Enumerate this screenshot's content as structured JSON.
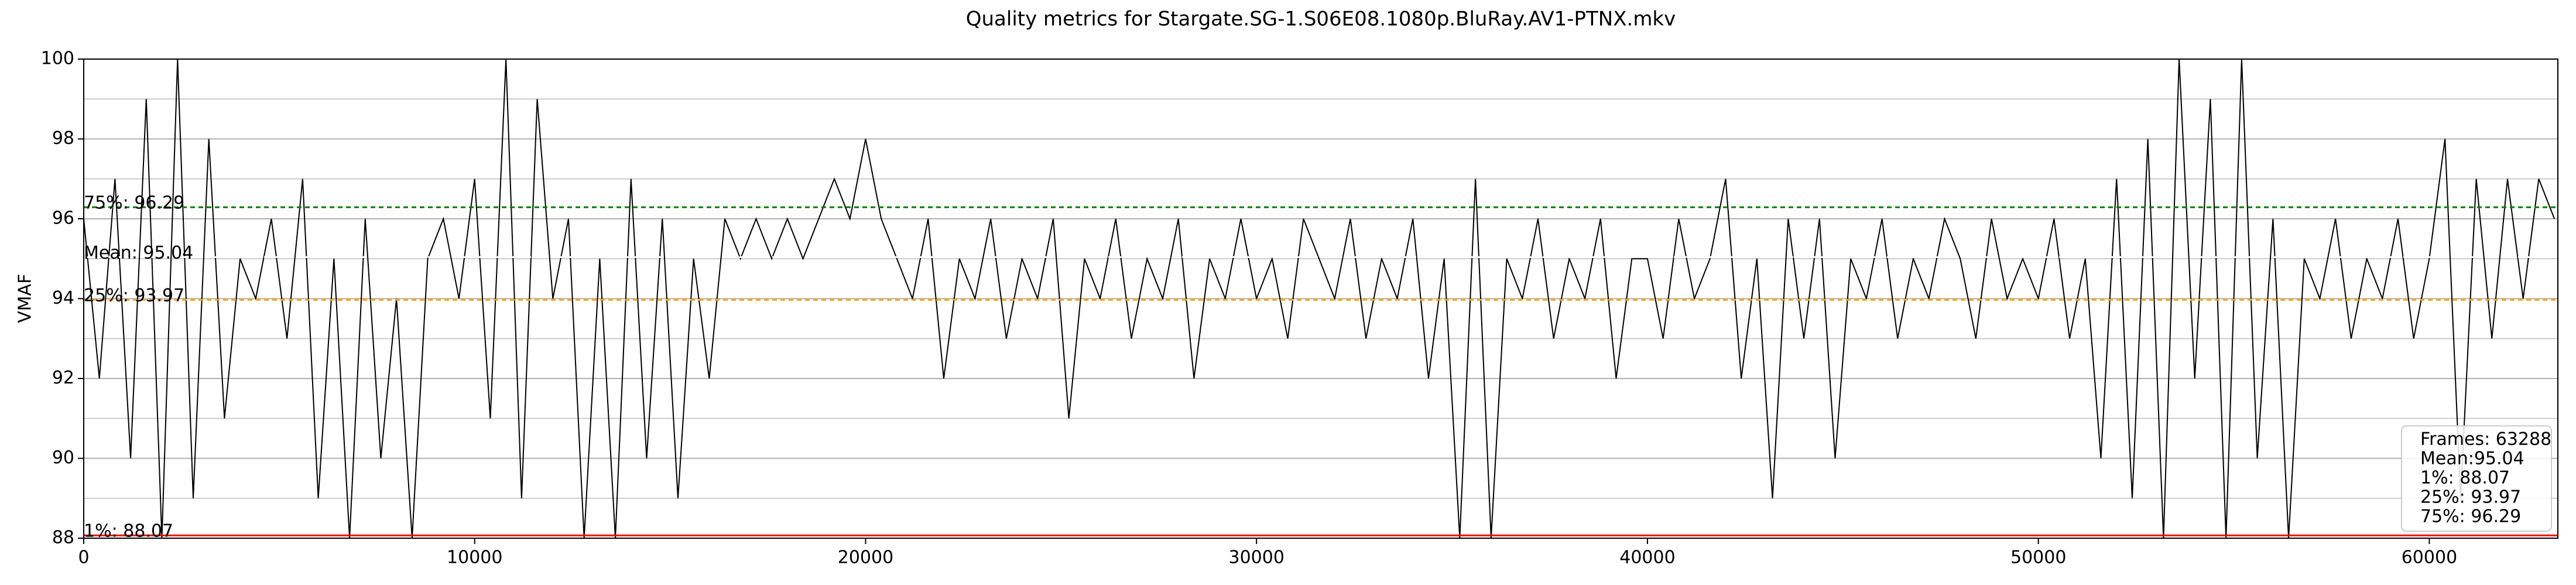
{
  "chart_data": {
    "type": "line",
    "title": "Quality metrics for Stargate.SG-1.S06E08.1080p.BluRay.AV1-PTNX.mkv",
    "y_label": "VMAF",
    "xlim": [
      0,
      63288
    ],
    "ylim": [
      88,
      100
    ],
    "xticks": [
      0,
      10000,
      20000,
      30000,
      40000,
      50000,
      60000
    ],
    "yticks": [
      88,
      90,
      92,
      94,
      96,
      98,
      100
    ],
    "yminor_ticks": [
      89,
      91,
      93,
      95,
      97,
      99
    ],
    "grid": true,
    "series": [
      {
        "color": "#000000",
        "x": [
          0,
          400,
          800,
          1200,
          1600,
          2000,
          2400,
          2800,
          3200,
          3600,
          4000,
          4400,
          4800,
          5200,
          5600,
          6000,
          6400,
          6800,
          7200,
          7600,
          8000,
          8400,
          8800,
          9200,
          9600,
          10000,
          10400,
          10800,
          11200,
          11600,
          12000,
          12400,
          12800,
          13200,
          13600,
          14000,
          14400,
          14800,
          15200,
          15600,
          16000,
          16400,
          16800,
          17200,
          17600,
          18000,
          18400,
          18800,
          19200,
          19600,
          20000,
          20400,
          20800,
          21200,
          21600,
          22000,
          22400,
          22800,
          23200,
          23600,
          24000,
          24400,
          24800,
          25200,
          25600,
          26000,
          26400,
          26800,
          27200,
          27600,
          28000,
          28400,
          28800,
          29200,
          29600,
          30000,
          30400,
          30800,
          31200,
          31600,
          32000,
          32400,
          32800,
          33200,
          33600,
          34000,
          34400,
          34800,
          35200,
          35600,
          36000,
          36400,
          36800,
          37200,
          37600,
          38000,
          38400,
          38800,
          39200,
          39600,
          40000,
          40400,
          40800,
          41200,
          41600,
          42000,
          42400,
          42800,
          43200,
          43600,
          44000,
          44400,
          44800,
          45200,
          45600,
          46000,
          46400,
          46800,
          47200,
          47600,
          48000,
          48400,
          48800,
          49200,
          49600,
          50000,
          50400,
          50800,
          51200,
          51600,
          52000,
          52400,
          52800,
          53200,
          53600,
          54000,
          54400,
          54800,
          55200,
          55600,
          56000,
          56400,
          56800,
          57200,
          57600,
          58000,
          58400,
          58800,
          59200,
          59600,
          60000,
          60400,
          60800,
          61200,
          61600,
          62000,
          62400,
          62800,
          63200
        ],
        "values": [
          96,
          92,
          97,
          90,
          99,
          88,
          100,
          89,
          98,
          91,
          95,
          94,
          96,
          93,
          97,
          89,
          95,
          88,
          96,
          90,
          94,
          88,
          95,
          96,
          94,
          97,
          91,
          100,
          89,
          99,
          94,
          96,
          88,
          95,
          88,
          97,
          90,
          96,
          89,
          95,
          92,
          96,
          95,
          96,
          95,
          96,
          95,
          96,
          97,
          96,
          98,
          96,
          95,
          94,
          96,
          92,
          95,
          94,
          96,
          93,
          95,
          94,
          96,
          91,
          95,
          94,
          96,
          93,
          95,
          94,
          96,
          92,
          95,
          94,
          96,
          94,
          95,
          93,
          96,
          95,
          94,
          96,
          93,
          95,
          94,
          96,
          92,
          95,
          88,
          97,
          88,
          95,
          94,
          96,
          93,
          95,
          94,
          96,
          92,
          95,
          95,
          93,
          96,
          94,
          95,
          97,
          92,
          95,
          89,
          96,
          93,
          96,
          90,
          95,
          94,
          96,
          93,
          95,
          94,
          96,
          95,
          93,
          96,
          94,
          95,
          94,
          96,
          93,
          95,
          90,
          97,
          89,
          98,
          88,
          100,
          92,
          99,
          88,
          100,
          90,
          96,
          88,
          95,
          94,
          96,
          93,
          95,
          94,
          96,
          93,
          95,
          98,
          89,
          97,
          93,
          97,
          94,
          97,
          96
        ]
      }
    ],
    "reference_lines": [
      {
        "label": "75%: 96.29",
        "value": 96.29,
        "color": "#008000",
        "style": "dashed"
      },
      {
        "label": "Mean: 95.04",
        "value": 95.04,
        "color": "#ffffff",
        "style": "dashed"
      },
      {
        "label": "25%: 93.97",
        "value": 93.97,
        "color": "#ffa500",
        "style": "dashed"
      },
      {
        "label": "1%: 88.07",
        "value": 88.07,
        "color": "#ff0000",
        "style": "solid"
      }
    ],
    "stats_box": [
      "Frames: 63288",
      "Mean:95.04",
      "1%: 88.07",
      "25%: 93.97",
      "75%: 96.29"
    ]
  }
}
